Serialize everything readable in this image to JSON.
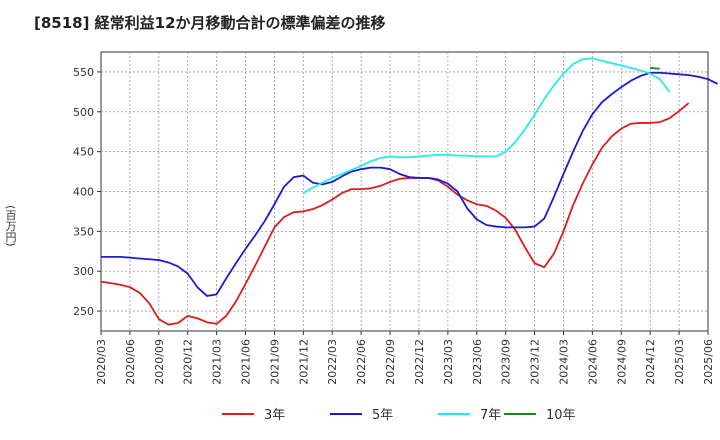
{
  "chart_data": {
    "type": "line",
    "title": "[8518]  経常利益12か月移動合計の標準偏差の推移",
    "ylabel": "(百万円)",
    "xlabel": "",
    "ylim": [
      225,
      575
    ],
    "yticks": [
      250,
      300,
      350,
      400,
      450,
      500,
      550
    ],
    "x_ticks": [
      "2020/03",
      "2020/06",
      "2020/09",
      "2020/12",
      "2021/03",
      "2021/06",
      "2021/09",
      "2021/12",
      "2022/03",
      "2022/06",
      "2022/09",
      "2022/12",
      "2023/03",
      "2023/06",
      "2023/09",
      "2023/12",
      "2024/03",
      "2024/06",
      "2024/09",
      "2024/12",
      "2025/03",
      "2025/06"
    ],
    "grid": true,
    "legend_position": "bottom",
    "series": [
      {
        "name": "3年",
        "color": "#dd1c1c",
        "start": "2020/03",
        "values": [
          287,
          285,
          283,
          280,
          273,
          260,
          240,
          233,
          235,
          244,
          241,
          236,
          234,
          244,
          262,
          284,
          307,
          331,
          355,
          368,
          374,
          375,
          378,
          383,
          390,
          398,
          403,
          403,
          404,
          407,
          412,
          416,
          417,
          417,
          417,
          414,
          406,
          396,
          389,
          384,
          382,
          376,
          367,
          352,
          330,
          310,
          305,
          322,
          350,
          383,
          410,
          434,
          455,
          469,
          479,
          485,
          486,
          486,
          487,
          492,
          501,
          511
        ]
      },
      {
        "name": "5年",
        "color": "#1a1ad8",
        "start": "2020/03",
        "values": [
          318,
          318,
          318,
          317,
          316,
          315,
          314,
          311,
          306,
          297,
          280,
          269,
          271,
          291,
          310,
          328,
          345,
          363,
          384,
          406,
          418,
          420,
          411,
          409,
          412,
          419,
          425,
          428,
          430,
          430,
          428,
          422,
          418,
          417,
          417,
          415,
          410,
          400,
          379,
          365,
          358,
          356,
          355,
          355,
          355,
          356,
          366,
          393,
          422,
          450,
          476,
          497,
          512,
          522,
          531,
          539,
          545,
          549,
          549,
          548,
          547,
          546,
          544,
          541,
          535
        ]
      },
      {
        "name": "7年",
        "color": "#22ecec",
        "start": "2021/12",
        "values": [
          398,
          405,
          411,
          417,
          422,
          427,
          432,
          438,
          442,
          444,
          443,
          443,
          444,
          445,
          446,
          446,
          445,
          445,
          444,
          444,
          444,
          450,
          462,
          478,
          496,
          516,
          533,
          548,
          560,
          566,
          567,
          564,
          561,
          558,
          555,
          552,
          548,
          541,
          525
        ]
      },
      {
        "name": "10年",
        "color": "#1b8a1b",
        "start": "2024/12",
        "values": [
          555,
          554
        ]
      }
    ]
  }
}
